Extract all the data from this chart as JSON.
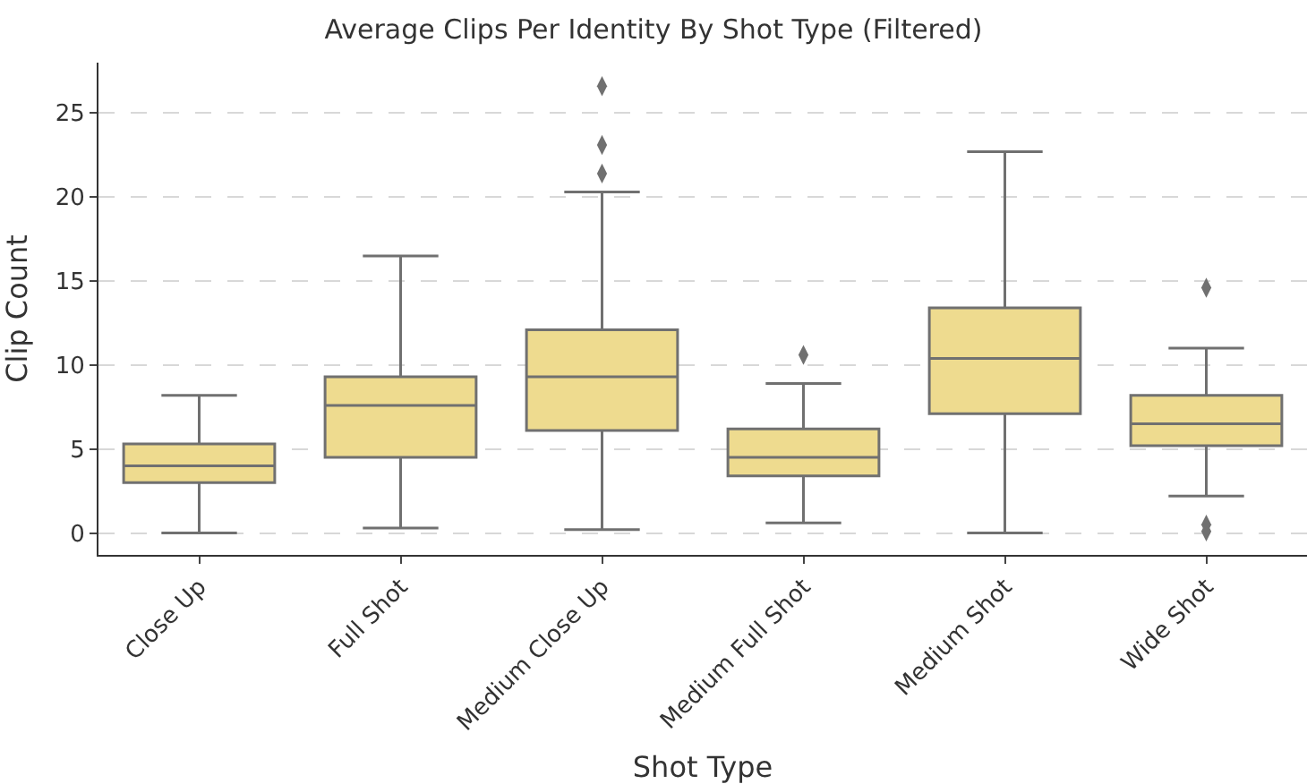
{
  "chart_data": {
    "type": "box",
    "title": "Average Clips Per Identity By Shot Type (Filtered)",
    "xlabel": "Shot Type",
    "ylabel": "Clip Count",
    "categories": [
      "Close Up",
      "Full Shot",
      "Medium Close Up",
      "Medium Full Shot",
      "Medium Shot",
      "Wide Shot"
    ],
    "boxes": [
      {
        "low": 0,
        "q1": 3.0,
        "median": 4.0,
        "q3": 5.3,
        "high": 8.2
      },
      {
        "low": 0.3,
        "q1": 4.5,
        "median": 7.6,
        "q3": 9.3,
        "high": 16.5
      },
      {
        "low": 0.2,
        "q1": 6.1,
        "median": 9.3,
        "q3": 12.1,
        "high": 20.3,
        "outliers": [
          21.4,
          23.1,
          26.6
        ]
      },
      {
        "low": 0.6,
        "q1": 3.4,
        "median": 4.5,
        "q3": 6.2,
        "high": 8.9,
        "outliers": [
          10.6
        ]
      },
      {
        "low": 0,
        "q1": 7.1,
        "median": 10.4,
        "q3": 13.4,
        "high": 22.7
      },
      {
        "low": 2.2,
        "q1": 5.2,
        "median": 6.5,
        "q3": 8.2,
        "high": 11.0,
        "outliers": [
          0.1,
          0.5,
          14.6
        ]
      }
    ],
    "color": "#eedb8f",
    "ylim": [
      -1.3,
      28
    ],
    "yticks": [
      0,
      5,
      10,
      15,
      20,
      25
    ],
    "grid": "y",
    "marker": "diamond"
  }
}
